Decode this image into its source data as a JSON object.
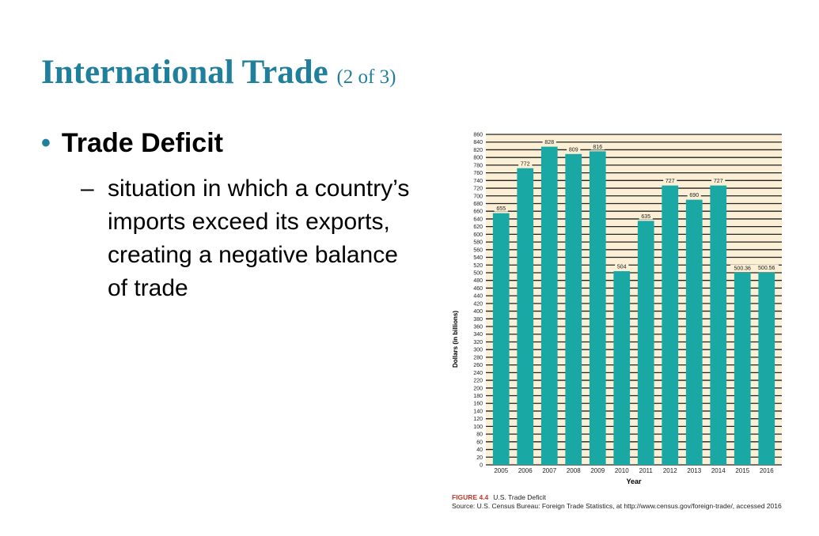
{
  "slide": {
    "title": "International Trade",
    "title_suffix": "(2 of 3)",
    "bullet": "Trade Deficit",
    "subbullet_marker": "–",
    "subbullet": "situation in which a country’s imports exceed its exports, creating a negative balance of trade"
  },
  "colors": {
    "title": "#1f7f9c",
    "bar": "#1aa8a5",
    "plot_background": "#fbefd5",
    "figure_label": "#c0392b"
  },
  "figure": {
    "label": "FIGURE 4.4",
    "title": "U.S. Trade Deficit",
    "source": "Source: U.S. Census Bureau: Foreign Trade Statistics, at http://www.census.gov/foreign-trade/, accessed 2016"
  },
  "chart_data": {
    "type": "bar",
    "categories": [
      "2005",
      "2006",
      "2007",
      "2008",
      "2009",
      "2010",
      "2011",
      "2012",
      "2013",
      "2014",
      "2015",
      "2016"
    ],
    "values": [
      655,
      772,
      828,
      809,
      816,
      504,
      635,
      727,
      690,
      727,
      500.36,
      500.56
    ],
    "data_labels": [
      "655",
      "772",
      "828",
      "809",
      "816",
      "504",
      "635",
      "727",
      "690",
      "727",
      "500.36",
      "500.56"
    ],
    "title": "",
    "xlabel": "Year",
    "ylabel": "Dollars (in billions)",
    "ylim": [
      0,
      860
    ],
    "yticks": [
      0,
      20,
      40,
      60,
      80,
      100,
      120,
      140,
      160,
      180,
      200,
      220,
      240,
      260,
      280,
      300,
      320,
      340,
      360,
      380,
      400,
      420,
      440,
      460,
      480,
      500,
      520,
      540,
      560,
      580,
      600,
      620,
      640,
      660,
      680,
      700,
      720,
      740,
      760,
      780,
      800,
      820,
      840,
      860
    ],
    "grid": true,
    "legend": "none"
  }
}
